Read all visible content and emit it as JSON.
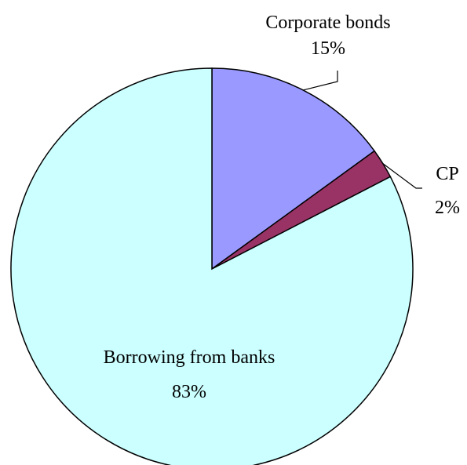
{
  "chart_data": {
    "type": "pie",
    "title": "",
    "slices": [
      {
        "label": "Corporate bonds",
        "value": 15,
        "display": "15%",
        "color": "#9999ff"
      },
      {
        "label": "CP",
        "value": 2.4,
        "display": "2%",
        "color": "#993366"
      },
      {
        "label": "Borrowing from banks",
        "value": 82.6,
        "display": "83%",
        "color": "#ccffff"
      }
    ],
    "start": "12 o'clock",
    "direction": "clockwise",
    "stroke_color": "#000000",
    "legend": "none"
  }
}
